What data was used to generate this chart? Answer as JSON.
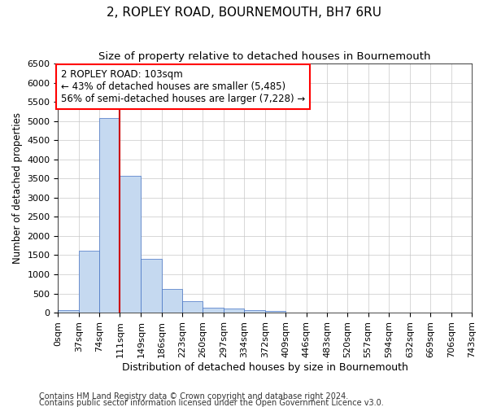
{
  "title1": "2, ROPLEY ROAD, BOURNEMOUTH, BH7 6RU",
  "title2": "Size of property relative to detached houses in Bournemouth",
  "xlabel": "Distribution of detached houses by size in Bournemouth",
  "ylabel": "Number of detached properties",
  "footnote1": "Contains HM Land Registry data © Crown copyright and database right 2024.",
  "footnote2": "Contains public sector information licensed under the Open Government Licence v3.0.",
  "annotation_line1": "2 ROPLEY ROAD: 103sqm",
  "annotation_line2": "← 43% of detached houses are smaller (5,485)",
  "annotation_line3": "56% of semi-detached houses are larger (7,228) →",
  "bar_values": [
    75,
    1625,
    5075,
    3575,
    1400,
    625,
    290,
    140,
    110,
    75,
    55,
    0,
    0,
    0,
    0,
    0,
    0,
    0,
    0,
    0
  ],
  "bin_edges": [
    0,
    37,
    74,
    111,
    149,
    186,
    223,
    260,
    297,
    334,
    372,
    409,
    446,
    483,
    520,
    557,
    594,
    632,
    669,
    706,
    743
  ],
  "bar_color": "#c5d9f0",
  "bar_edge_color": "#4472c4",
  "vline_x": 111,
  "vline_color": "#cc0000",
  "ylim": [
    0,
    6500
  ],
  "yticks": [
    0,
    500,
    1000,
    1500,
    2000,
    2500,
    3000,
    3500,
    4000,
    4500,
    5000,
    5500,
    6000,
    6500
  ],
  "grid_color": "#c8c8c8",
  "background_color": "#ffffff",
  "title1_fontsize": 11,
  "title2_fontsize": 9.5,
  "xlabel_fontsize": 9,
  "ylabel_fontsize": 8.5,
  "annotation_fontsize": 8.5,
  "tick_fontsize": 8,
  "footnote_fontsize": 7
}
